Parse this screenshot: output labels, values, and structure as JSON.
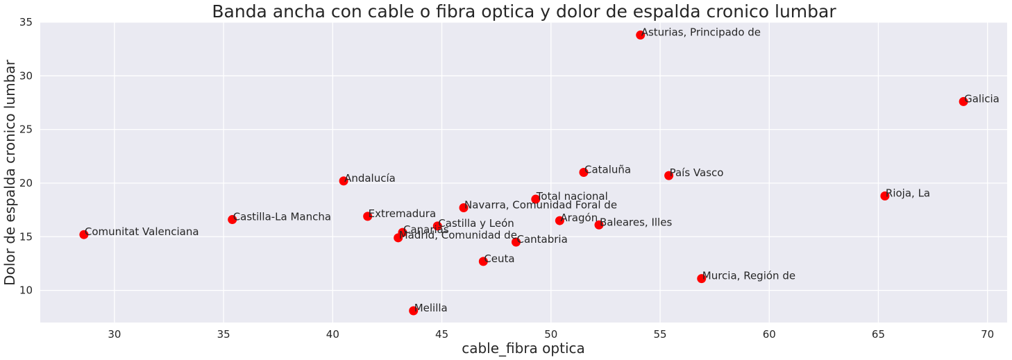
{
  "chart_data": {
    "type": "scatter",
    "title": "Banda ancha con cable o fibra optica y dolor de espalda cronico lumbar",
    "xlabel": "cable_fibra optica",
    "ylabel": "Dolor de espalda cronico lumbar",
    "xlim": [
      26.6,
      70.9
    ],
    "ylim": [
      7.0,
      35.0
    ],
    "xticks": [
      "30",
      "35",
      "40",
      "45",
      "50",
      "55",
      "60",
      "65",
      "70"
    ],
    "yticks": [
      "10",
      "15",
      "20",
      "25",
      "30",
      "35"
    ],
    "grid": true,
    "marker_color": "#ff0000",
    "background_color": "#eaeaf2",
    "points": [
      {
        "label": "Asturias, Principado de",
        "x": 54.1,
        "y": 33.8
      },
      {
        "label": "Galicia",
        "x": 68.9,
        "y": 27.6
      },
      {
        "label": "Cataluña",
        "x": 51.5,
        "y": 21.0
      },
      {
        "label": "País Vasco",
        "x": 55.4,
        "y": 20.7
      },
      {
        "label": "Andalucía",
        "x": 40.5,
        "y": 20.2
      },
      {
        "label": "Rioja, La",
        "x": 65.3,
        "y": 18.8
      },
      {
        "label": "Total nacional",
        "x": 49.3,
        "y": 18.5
      },
      {
        "label": "Navarra, Comunidad Foral de",
        "x": 46.0,
        "y": 17.7
      },
      {
        "label": "Extremadura",
        "x": 41.6,
        "y": 16.9
      },
      {
        "label": "Castilla-La Mancha",
        "x": 35.4,
        "y": 16.6
      },
      {
        "label": "Aragón",
        "x": 50.4,
        "y": 16.5
      },
      {
        "label": "Baleares, Illes",
        "x": 52.2,
        "y": 16.1
      },
      {
        "label": "Castilla y León",
        "x": 44.8,
        "y": 16.0
      },
      {
        "label": "Canarias",
        "x": 43.2,
        "y": 15.4
      },
      {
        "label": "Comunitat Valenciana",
        "x": 28.6,
        "y": 15.2
      },
      {
        "label": "Madrid, Comunidad de",
        "x": 43.0,
        "y": 14.9
      },
      {
        "label": "Cantabria",
        "x": 48.4,
        "y": 14.5
      },
      {
        "label": "Ceuta",
        "x": 46.9,
        "y": 12.7
      },
      {
        "label": "Murcia, Región de",
        "x": 56.9,
        "y": 11.1
      },
      {
        "label": "Melilla",
        "x": 43.7,
        "y": 8.1
      }
    ]
  }
}
